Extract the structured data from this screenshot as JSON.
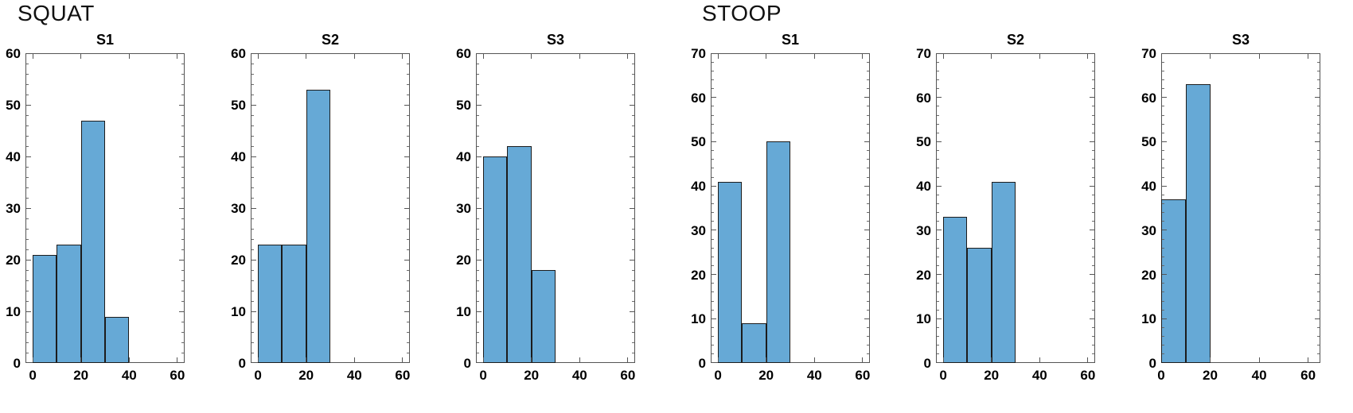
{
  "figure": {
    "background": "#ffffff",
    "bar_fill": "#66A9D6",
    "bar_edge": "#1c1c1c",
    "axis_color": "#555555",
    "text_color": "#000000"
  },
  "groups": [
    {
      "label": "SQUAT"
    },
    {
      "label": "STOOP"
    }
  ],
  "chart_data": [
    {
      "type": "bar",
      "group": "SQUAT",
      "title": "S1",
      "bin_start": 0,
      "bin_width": 10,
      "categories": [
        "0-10",
        "10-20",
        "20-30",
        "30-40"
      ],
      "values": [
        21,
        23,
        47,
        9
      ],
      "xlabel": "",
      "ylabel": "",
      "xlim": [
        -3,
        63
      ],
      "ylim": [
        0,
        60
      ],
      "xticks": [
        0,
        20,
        40,
        60
      ],
      "ytick_step": 10,
      "y_minor_step": 2,
      "grid": false,
      "legend": null
    },
    {
      "type": "bar",
      "group": "SQUAT",
      "title": "S2",
      "bin_start": 0,
      "bin_width": 10,
      "categories": [
        "0-10",
        "10-20",
        "20-30"
      ],
      "values": [
        23,
        23,
        53
      ],
      "xlabel": "",
      "ylabel": "",
      "xlim": [
        -3,
        63
      ],
      "ylim": [
        0,
        60
      ],
      "xticks": [
        0,
        20,
        40,
        60
      ],
      "ytick_step": 10,
      "y_minor_step": 2,
      "grid": false,
      "legend": null
    },
    {
      "type": "bar",
      "group": "SQUAT",
      "title": "S3",
      "bin_start": 0,
      "bin_width": 10,
      "categories": [
        "0-10",
        "10-20",
        "20-30"
      ],
      "values": [
        40,
        42,
        18
      ],
      "xlabel": "",
      "ylabel": "",
      "xlim": [
        -3,
        63
      ],
      "ylim": [
        0,
        60
      ],
      "xticks": [
        0,
        20,
        40,
        60
      ],
      "ytick_step": 10,
      "y_minor_step": 2,
      "grid": false,
      "legend": null
    },
    {
      "type": "bar",
      "group": "STOOP",
      "title": "S1",
      "bin_start": 0,
      "bin_width": 10,
      "categories": [
        "0-10",
        "10-20",
        "20-30"
      ],
      "values": [
        41,
        9,
        50
      ],
      "xlabel": "",
      "ylabel": "",
      "xlim": [
        -3,
        63
      ],
      "ylim": [
        0,
        70
      ],
      "xticks": [
        0,
        20,
        40,
        60
      ],
      "ytick_step": 10,
      "y_minor_step": 2,
      "grid": false,
      "legend": null
    },
    {
      "type": "bar",
      "group": "STOOP",
      "title": "S2",
      "bin_start": 0,
      "bin_width": 10,
      "categories": [
        "0-10",
        "10-20",
        "20-30"
      ],
      "values": [
        33,
        26,
        41
      ],
      "xlabel": "",
      "ylabel": "",
      "xlim": [
        -3,
        63
      ],
      "ylim": [
        0,
        70
      ],
      "xticks": [
        0,
        20,
        40,
        60
      ],
      "ytick_step": 10,
      "y_minor_step": 2,
      "grid": false,
      "legend": null
    },
    {
      "type": "bar",
      "group": "STOOP",
      "title": "S3",
      "bin_start": 0,
      "bin_width": 10,
      "categories": [
        "0-10",
        "10-20"
      ],
      "values": [
        37,
        63
      ],
      "xlabel": "",
      "ylabel": "",
      "xlim": [
        0,
        65
      ],
      "ylim": [
        0,
        70
      ],
      "xticks": [
        0,
        20,
        40,
        60
      ],
      "ytick_step": 10,
      "y_minor_step": 2,
      "grid": false,
      "legend": null
    }
  ]
}
